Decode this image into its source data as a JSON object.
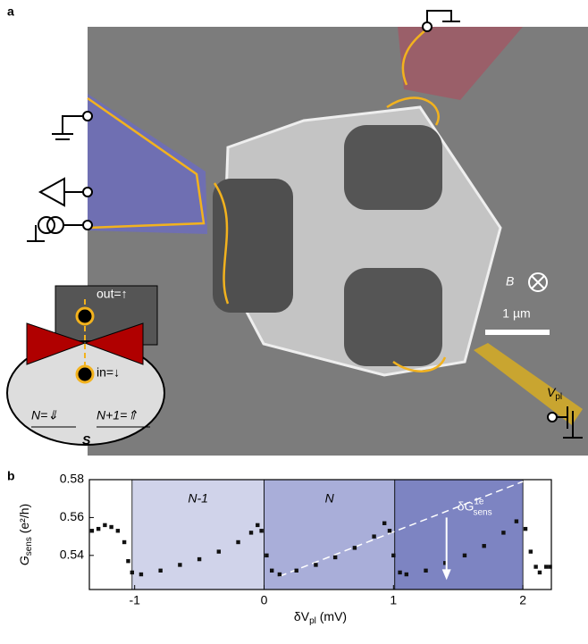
{
  "figure_a": {
    "panel_label": "a",
    "inset": {
      "out": "out=↑",
      "in": "in=↓",
      "n_state": "N=⇓",
      "n1_state": "N+1=⇑",
      "s": "S"
    },
    "field_label": "B",
    "scale_bar": "1 µm",
    "gate_label": {
      "symbol": "V",
      "subscript": "pl"
    }
  },
  "chart_data": {
    "type": "scatter",
    "panel_label": "b",
    "ylabel": {
      "main": "G",
      "sub": "sens",
      "rest": " (e²/h)"
    },
    "xlabel": {
      "main": "δV",
      "sub": "pl",
      "rest": " (mV)"
    },
    "annotation": {
      "main": "δG",
      "sup": "1e",
      "sub": "sens",
      "x": 1.41,
      "y": [
        0.56,
        0.527
      ]
    },
    "regions": [
      {
        "label": "N-1",
        "x": [
          -1.02,
          0
        ],
        "color": "#d0d3ea"
      },
      {
        "label": "N",
        "x": [
          0,
          1.01
        ],
        "color": "#a9aed9"
      },
      {
        "label": null,
        "x": [
          1.01,
          2.0
        ],
        "color": "#7d84c2"
      }
    ],
    "guide_line": {
      "x": [
        0.12,
        2.0
      ],
      "y": [
        0.529,
        0.579
      ]
    },
    "x": [
      -1.33,
      -1.28,
      -1.23,
      -1.18,
      -1.13,
      -1.08,
      -1.05,
      -1.02,
      -0.95,
      -0.8,
      -0.65,
      -0.5,
      -0.35,
      -0.2,
      -0.1,
      -0.05,
      -0.02,
      0.02,
      0.06,
      0.12,
      0.25,
      0.4,
      0.55,
      0.7,
      0.85,
      0.93,
      0.97,
      1.0,
      1.05,
      1.1,
      1.25,
      1.4,
      1.55,
      1.7,
      1.85,
      1.95,
      2.02,
      2.06,
      2.1,
      2.13,
      2.18,
      2.21
    ],
    "values": [
      0.553,
      0.554,
      0.556,
      0.555,
      0.553,
      0.547,
      0.537,
      0.531,
      0.53,
      0.532,
      0.535,
      0.538,
      0.542,
      0.547,
      0.552,
      0.556,
      0.553,
      0.54,
      0.532,
      0.53,
      0.532,
      0.535,
      0.539,
      0.544,
      0.55,
      0.557,
      0.553,
      0.54,
      0.531,
      0.53,
      0.532,
      0.536,
      0.54,
      0.545,
      0.552,
      0.558,
      0.554,
      0.542,
      0.534,
      0.531,
      0.534,
      0.534
    ],
    "color": "#111111",
    "xlim": [
      -1.35,
      2.22
    ],
    "ylim": [
      0.522,
      0.58
    ],
    "xticks": [
      -1,
      0,
      1,
      2
    ],
    "yticks": [
      0.54,
      0.56,
      0.58
    ]
  }
}
